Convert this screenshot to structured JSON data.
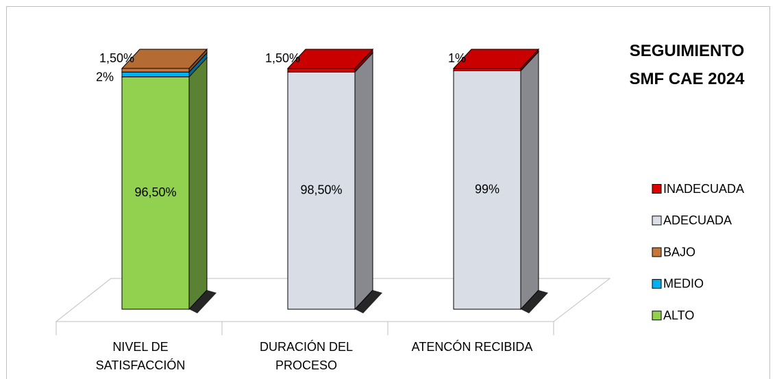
{
  "chart_data": {
    "type": "bar3d_stacked",
    "title": "SEGUIMIENTO SMF CAE 2024",
    "categories": [
      "NIVEL DE SATISFACCIÓN",
      "DURACIÓN DEL PROCESO",
      "ATENCÓN RECIBIDA"
    ],
    "series": [
      {
        "name": "ALTO",
        "color": "#92d050",
        "values": [
          96.5,
          null,
          null
        ],
        "value_labels": [
          "96,50%",
          null,
          null
        ]
      },
      {
        "name": "MEDIO",
        "color": "#00b0f0",
        "values": [
          2,
          null,
          null
        ],
        "value_labels": [
          "2%",
          null,
          null
        ]
      },
      {
        "name": "BAJO",
        "color": "#c8773a",
        "values": [
          1.5,
          null,
          null
        ],
        "value_labels": [
          "1,50%",
          null,
          null
        ]
      },
      {
        "name": "ADECUADA",
        "color": "#d9dde6",
        "values": [
          null,
          98.5,
          99
        ],
        "value_labels": [
          null,
          "98,50%",
          "99%"
        ]
      },
      {
        "name": "INADECUADA",
        "color": "#e00000",
        "values": [
          null,
          1.5,
          1
        ],
        "value_labels": [
          null,
          "1,50%",
          "1%"
        ]
      }
    ],
    "legend": "right"
  }
}
